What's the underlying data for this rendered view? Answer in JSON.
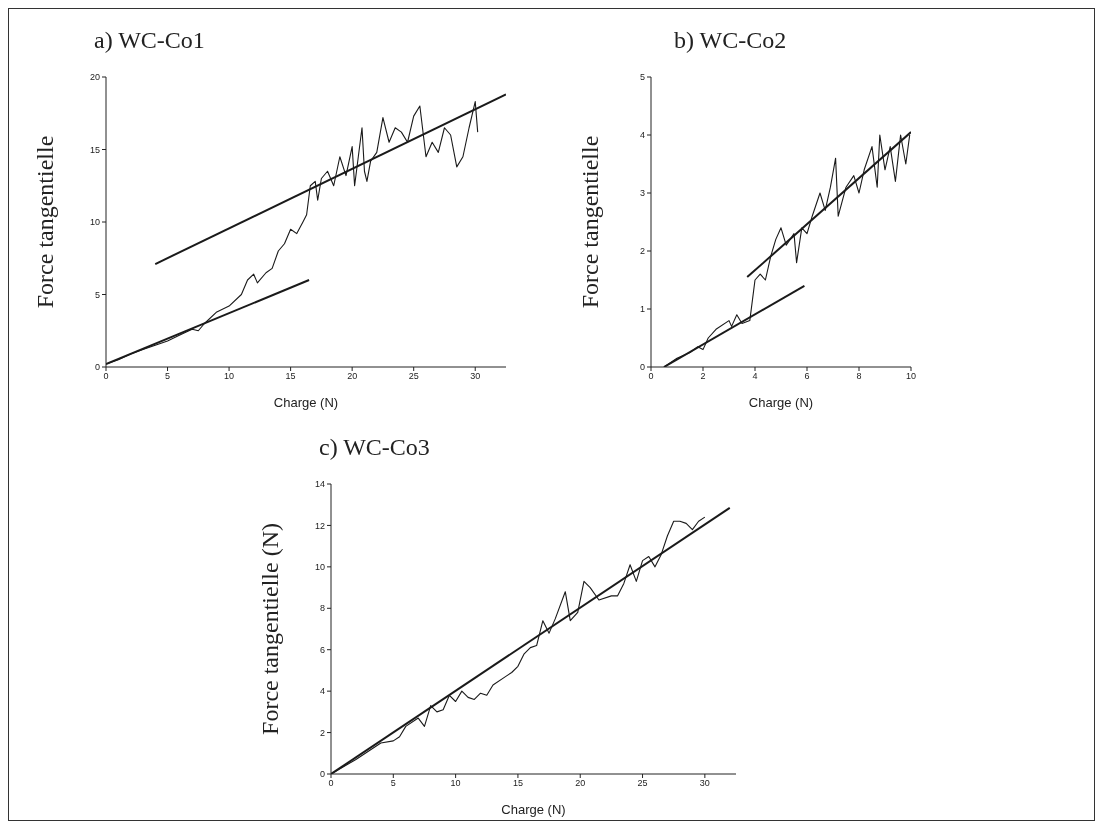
{
  "chart_data": [
    {
      "type": "line",
      "title": "a) WC-Co1",
      "xlabel": "Charge (N)",
      "ylabel": "Force tangentielle",
      "xlim": [
        0,
        32.5
      ],
      "ylim": [
        0,
        20
      ],
      "xticks": [
        0,
        5,
        10,
        15,
        20,
        25,
        30
      ],
      "yticks": [
        0,
        5,
        10,
        15,
        20
      ],
      "legend": false,
      "grid": false,
      "series": [
        {
          "color": "#1a1a1a",
          "x": [
            0,
            1,
            2,
            3,
            4,
            5,
            6,
            7,
            7.5,
            8,
            9,
            10,
            11,
            11.5,
            12,
            12.3,
            13,
            13.5,
            14,
            14.5,
            15,
            15.5,
            16,
            16.3,
            16.6,
            17,
            17.2,
            17.5,
            18,
            18.5,
            19,
            19.5,
            20,
            20.2,
            20.5,
            20.8,
            21,
            21.2,
            21.5,
            22,
            22.5,
            23,
            23.5,
            24,
            24.5,
            25,
            25.5,
            26,
            26.5,
            27,
            27.5,
            28,
            28.5,
            29,
            29.5,
            30,
            30.2
          ],
          "values": [
            0.2,
            0.5,
            0.9,
            1.2,
            1.5,
            1.8,
            2.2,
            2.6,
            2.5,
            3,
            3.8,
            4.2,
            5,
            6,
            6.4,
            5.8,
            6.5,
            6.8,
            8,
            8.5,
            9.5,
            9.2,
            10,
            10.5,
            12.5,
            12.8,
            11.5,
            13,
            13.5,
            12.5,
            14.5,
            13.2,
            15.2,
            12.5,
            14.5,
            16.5,
            13.5,
            12.8,
            14.2,
            14.8,
            17.2,
            15.5,
            16.5,
            16.2,
            15.5,
            17.3,
            18,
            14.5,
            15.5,
            14.8,
            16.5,
            16,
            13.8,
            14.5,
            16.5,
            18.3,
            16.2
          ]
        },
        {
          "type": "line",
          "color": "#1a1a1a",
          "x": [
            0,
            16.5
          ],
          "values": [
            0.2,
            6
          ]
        },
        {
          "type": "line",
          "color": "#1a1a1a",
          "x": [
            4,
            32.5
          ],
          "values": [
            7.1,
            18.8
          ]
        }
      ]
    },
    {
      "type": "line",
      "title": "b) WC-Co2",
      "xlabel": "Charge (N)",
      "ylabel": "Force tangentielle",
      "xlim": [
        0,
        10
      ],
      "ylim": [
        0,
        5
      ],
      "xticks": [
        0,
        2,
        4,
        6,
        8,
        10
      ],
      "yticks": [
        0,
        1,
        2,
        3,
        4,
        5
      ],
      "legend": false,
      "grid": false,
      "series": [
        {
          "color": "#1a1a1a",
          "x": [
            0.5,
            1,
            1.5,
            1.8,
            2,
            2.2,
            2.5,
            3,
            3.1,
            3.3,
            3.5,
            3.8,
            4,
            4.2,
            4.4,
            4.6,
            4.8,
            5,
            5.2,
            5.5,
            5.6,
            5.8,
            6,
            6.2,
            6.5,
            6.7,
            6.9,
            7.1,
            7.2,
            7.5,
            7.8,
            8,
            8.2,
            8.5,
            8.7,
            8.8,
            9,
            9.2,
            9.4,
            9.6,
            9.8,
            9.95
          ],
          "values": [
            0,
            0.15,
            0.25,
            0.35,
            0.3,
            0.5,
            0.65,
            0.8,
            0.7,
            0.9,
            0.75,
            0.8,
            1.5,
            1.6,
            1.5,
            1.9,
            2.2,
            2.4,
            2.1,
            2.3,
            1.8,
            2.4,
            2.3,
            2.6,
            3,
            2.7,
            3.1,
            3.6,
            2.6,
            3.1,
            3.3,
            3,
            3.4,
            3.8,
            3.1,
            4,
            3.4,
            3.8,
            3.2,
            4,
            3.5,
            4
          ]
        },
        {
          "type": "line",
          "color": "#1a1a1a",
          "x": [
            0.5,
            5.9
          ],
          "values": [
            0,
            1.4
          ]
        },
        {
          "type": "line",
          "color": "#1a1a1a",
          "x": [
            3.7,
            10
          ],
          "values": [
            1.55,
            4.05
          ]
        }
      ]
    },
    {
      "type": "line",
      "title": "c) WC-Co3",
      "xlabel": "Charge (N)",
      "ylabel": "Force tangentielle (N)",
      "xlim": [
        0,
        32.5
      ],
      "ylim": [
        0,
        14
      ],
      "xticks": [
        0,
        5,
        10,
        15,
        20,
        25,
        30
      ],
      "yticks": [
        0,
        2,
        4,
        6,
        8,
        10,
        12,
        14
      ],
      "legend": false,
      "grid": false,
      "series": [
        {
          "color": "#1a1a1a",
          "x": [
            0,
            2,
            3,
            4,
            5,
            5.5,
            6,
            7,
            7.5,
            8,
            8.5,
            9,
            9.5,
            10,
            10.5,
            11,
            11.5,
            12,
            12.5,
            13,
            14,
            14.5,
            15,
            15.5,
            16,
            16.5,
            17,
            17.5,
            18,
            18.8,
            19.2,
            19.8,
            20.3,
            20.8,
            21.5,
            22.5,
            23,
            23.5,
            24,
            24.5,
            25,
            25.5,
            26,
            26.5,
            27,
            27.5,
            28,
            28.5,
            29,
            29.5,
            30
          ],
          "values": [
            0,
            0.7,
            1.1,
            1.5,
            1.6,
            1.8,
            2.3,
            2.7,
            2.3,
            3.3,
            3,
            3.1,
            3.8,
            3.5,
            4,
            3.7,
            3.6,
            3.9,
            3.8,
            4.3,
            4.7,
            4.9,
            5.2,
            5.8,
            6.1,
            6.2,
            7.4,
            6.8,
            7.5,
            8.8,
            7.4,
            7.8,
            9.3,
            9,
            8.4,
            8.6,
            8.6,
            9.2,
            10.1,
            9.3,
            10.3,
            10.5,
            10,
            10.6,
            11.5,
            12.2,
            12.2,
            12.1,
            11.8,
            12.2,
            12.4
          ]
        },
        {
          "type": "line",
          "color": "#1a1a1a",
          "x": [
            0,
            32
          ],
          "values": [
            0,
            12.85
          ]
        }
      ]
    }
  ]
}
